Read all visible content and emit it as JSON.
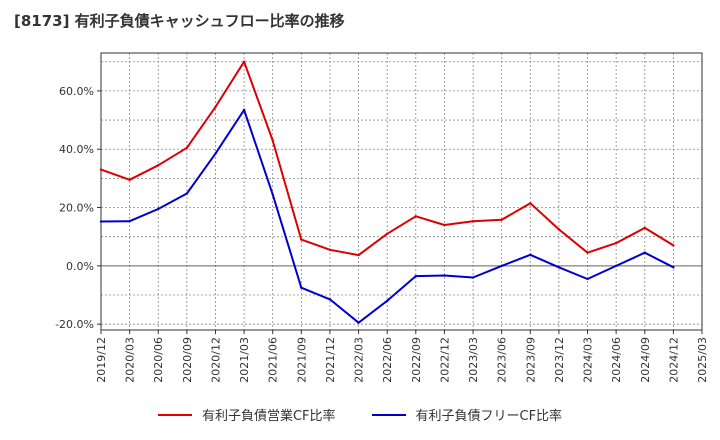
{
  "title": "[8173]  有利子負債キャッシュフロー比率の推移",
  "chart_data": {
    "type": "line",
    "title": "[8173]  有利子負債キャッシュフロー比率の推移",
    "xlabel": "",
    "ylabel": "",
    "categories": [
      "2019/12",
      "2020/03",
      "2020/06",
      "2020/09",
      "2020/12",
      "2021/03",
      "2021/06",
      "2021/09",
      "2021/12",
      "2022/03",
      "2022/06",
      "2022/09",
      "2022/12",
      "2023/03",
      "2023/06",
      "2023/09",
      "2023/12",
      "2024/03",
      "2024/06",
      "2024/09",
      "2024/12",
      "2025/03"
    ],
    "ylim": [
      -22,
      73
    ],
    "yticks": [
      -20,
      0,
      20,
      40,
      60
    ],
    "ytick_labels": [
      "-20.0%",
      "0.0%",
      "20.0%",
      "40.0%",
      "60.0%"
    ],
    "grid": true,
    "legend_position": "bottom",
    "series": [
      {
        "name": "有利子負債営業CF比率",
        "color": "#dd0000",
        "values": [
          33.0,
          29.5,
          34.5,
          40.5,
          54.5,
          70.0,
          43.0,
          9.0,
          5.5,
          3.7,
          11.0,
          17.0,
          14.0,
          15.3,
          15.8,
          21.5,
          12.5,
          4.5,
          7.8,
          13.0,
          7.0,
          null
        ]
      },
      {
        "name": "有利子負債フリーCF比率",
        "color": "#0000cc",
        "values": [
          15.2,
          15.3,
          19.5,
          24.8,
          38.5,
          53.5,
          24.5,
          -7.5,
          -11.5,
          -19.5,
          -12.0,
          -3.5,
          -3.3,
          -4.0,
          0.0,
          3.8,
          -0.5,
          -4.5,
          0.0,
          4.5,
          -0.5,
          null
        ]
      }
    ]
  }
}
